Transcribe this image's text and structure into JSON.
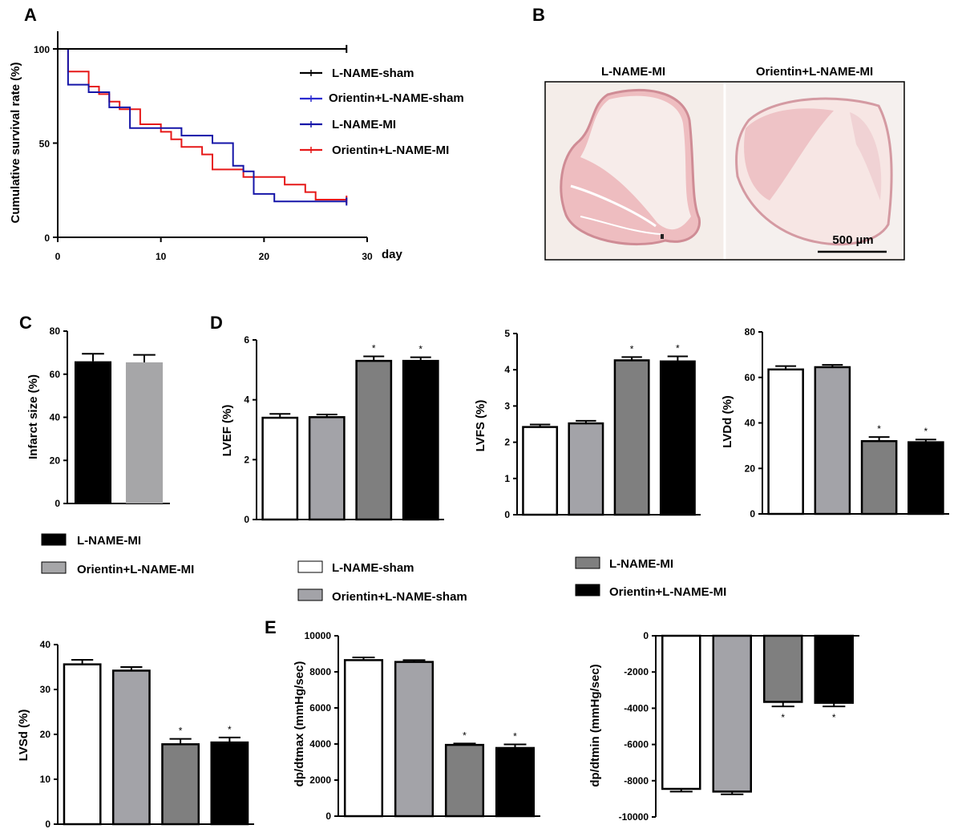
{
  "figure": {
    "panel_labels": {
      "A": "A",
      "B": "B",
      "C": "C",
      "D": "D",
      "E": "E"
    },
    "colors": {
      "sham": "#ffffff",
      "orientin_sham": "#a3a3a8",
      "mi": "#7f7f7f",
      "orientin_mi": "#000000",
      "c_orientin_mi": "#a6a6a8",
      "surv_sham": "#000000",
      "surv_orientin_sham": "#2a2ad0",
      "surv_mi": "#1515a8",
      "surv_orientin_mi": "#e61919"
    },
    "histology": {
      "left_title": "L-NAME-MI",
      "right_title": "Orientin+L-NAME-MI",
      "scale_bar": "500 µm"
    },
    "legend_c": [
      "L-NAME-MI",
      "Orientin+L-NAME-MI"
    ],
    "legend_d": [
      "L-NAME-sham",
      "Orientin+L-NAME-sham",
      "L-NAME-MI",
      "Orientin+L-NAME-MI"
    ]
  },
  "chart_data": [
    {
      "id": "A",
      "type": "line",
      "xlabel": "day",
      "ylabel": "Cumulative survival rate (%)",
      "xlim": [
        0,
        30
      ],
      "ylim": [
        0,
        100
      ],
      "xticks": [
        "0",
        "10",
        "20",
        "30"
      ],
      "yticks": [
        "0",
        "50",
        "100"
      ],
      "series": [
        {
          "name": "L-NAME-sham",
          "steps": [
            [
              0,
              100
            ],
            [
              28,
              100
            ]
          ]
        },
        {
          "name": "Orientin+L-NAME-sham",
          "steps": [
            [
              1,
              100
            ],
            [
              28,
              100
            ]
          ]
        },
        {
          "name": "L-NAME-MI",
          "steps": [
            [
              1,
              100
            ],
            [
              1,
              81
            ],
            [
              3,
              81
            ],
            [
              3,
              77
            ],
            [
              5,
              77
            ],
            [
              5,
              69
            ],
            [
              7,
              69
            ],
            [
              7,
              58
            ],
            [
              12,
              58
            ],
            [
              12,
              54
            ],
            [
              15,
              54
            ],
            [
              15,
              50
            ],
            [
              17,
              50
            ],
            [
              17,
              38
            ],
            [
              18,
              38
            ],
            [
              18,
              35
            ],
            [
              19,
              35
            ],
            [
              19,
              23
            ],
            [
              21,
              23
            ],
            [
              21,
              19
            ],
            [
              28,
              19
            ]
          ]
        },
        {
          "name": "Orientin+L-NAME-MI",
          "steps": [
            [
              1,
              100
            ],
            [
              1,
              88
            ],
            [
              3,
              88
            ],
            [
              3,
              80
            ],
            [
              4,
              80
            ],
            [
              4,
              76
            ],
            [
              5,
              76
            ],
            [
              5,
              72
            ],
            [
              6,
              72
            ],
            [
              6,
              68
            ],
            [
              8,
              68
            ],
            [
              8,
              60
            ],
            [
              10,
              60
            ],
            [
              10,
              56
            ],
            [
              11,
              56
            ],
            [
              11,
              52
            ],
            [
              12,
              52
            ],
            [
              12,
              48
            ],
            [
              14,
              48
            ],
            [
              14,
              44
            ],
            [
              15,
              44
            ],
            [
              15,
              36
            ],
            [
              18,
              36
            ],
            [
              18,
              32
            ],
            [
              22,
              32
            ],
            [
              22,
              28
            ],
            [
              24,
              28
            ],
            [
              24,
              24
            ],
            [
              25,
              24
            ],
            [
              25,
              20
            ],
            [
              28,
              20
            ],
            [
              28,
              21
            ]
          ]
        }
      ]
    },
    {
      "id": "C",
      "type": "bar",
      "ylabel": "Infarct size (%)",
      "ylim": [
        0,
        80
      ],
      "yticks": [
        0,
        20,
        40,
        60,
        80
      ],
      "categories": [
        "L-NAME-MI",
        "Orientin+L-NAME-MI"
      ],
      "values": [
        66,
        65.5
      ],
      "errors": [
        3.5,
        3.5
      ],
      "stars": [
        "",
        ""
      ]
    },
    {
      "id": "LVEF",
      "type": "bar",
      "ylabel": "LVEF (%)",
      "ylim": [
        0,
        6
      ],
      "yticks": [
        0,
        2,
        4,
        6
      ],
      "categories": [
        "L-NAME-sham",
        "Orientin+L-NAME-sham",
        "L-NAME-MI",
        "Orientin+L-NAME-MI"
      ],
      "values": [
        3.4,
        3.42,
        5.3,
        5.3
      ],
      "errors": [
        0.13,
        0.09,
        0.15,
        0.12
      ],
      "stars": [
        "",
        "",
        "*",
        "*"
      ]
    },
    {
      "id": "LVFS",
      "type": "bar",
      "ylabel": "LVFS (%)",
      "ylim": [
        0,
        5
      ],
      "yticks": [
        0,
        1,
        2,
        3,
        4,
        5
      ],
      "categories": [
        "L-NAME-sham",
        "Orientin+L-NAME-sham",
        "L-NAME-MI",
        "Orientin+L-NAME-MI"
      ],
      "values": [
        2.42,
        2.52,
        4.26,
        4.23
      ],
      "errors": [
        0.07,
        0.07,
        0.09,
        0.14
      ],
      "stars": [
        "",
        "",
        "*",
        "*"
      ]
    },
    {
      "id": "LVDd",
      "type": "bar",
      "ylabel": "LVDd (%)",
      "ylim": [
        0,
        80
      ],
      "yticks": [
        0,
        20,
        40,
        60,
        80
      ],
      "categories": [
        "L-NAME-sham",
        "Orientin+L-NAME-sham",
        "L-NAME-MI",
        "Orientin+L-NAME-MI"
      ],
      "values": [
        63.5,
        64.5,
        32,
        31.5
      ],
      "errors": [
        1.5,
        1,
        1.8,
        1.2
      ],
      "stars": [
        "",
        "",
        "*",
        "*"
      ]
    },
    {
      "id": "LVSd",
      "type": "bar",
      "ylabel": "LVSd (%)",
      "ylim": [
        0,
        40
      ],
      "yticks": [
        0,
        10,
        20,
        30,
        40
      ],
      "categories": [
        "L-NAME-sham",
        "Orientin+L-NAME-sham",
        "L-NAME-MI",
        "Orientin+L-NAME-MI"
      ],
      "values": [
        35.6,
        34.2,
        17.8,
        18.2
      ],
      "errors": [
        1,
        0.8,
        1.2,
        1.1
      ],
      "stars": [
        "",
        "",
        "*",
        "*"
      ]
    },
    {
      "id": "dpdtmax",
      "type": "bar",
      "ylabel": "dp/dtmax (mmHg/sec)",
      "ylim": [
        0,
        10000
      ],
      "yticks": [
        0,
        2000,
        4000,
        6000,
        8000,
        10000
      ],
      "categories": [
        "L-NAME-sham",
        "Orientin+L-NAME-sham",
        "L-NAME-MI",
        "Orientin+L-NAME-MI"
      ],
      "values": [
        8650,
        8550,
        3950,
        3780
      ],
      "errors": [
        150,
        100,
        80,
        200
      ],
      "stars": [
        "",
        "",
        "*",
        "*"
      ]
    },
    {
      "id": "dpdtmin",
      "type": "bar",
      "ylabel": "dp/dtmin (mmHg/sec)",
      "ylim": [
        -10000,
        0
      ],
      "yticks": [
        -10000,
        -8000,
        -6000,
        -4000,
        -2000,
        0
      ],
      "categories": [
        "L-NAME-sham",
        "Orientin+L-NAME-sham",
        "L-NAME-MI",
        "Orientin+L-NAME-MI"
      ],
      "values": [
        -8450,
        -8600,
        -3650,
        -3700
      ],
      "errors": [
        150,
        150,
        250,
        200
      ],
      "stars": [
        "",
        "",
        "*",
        "*"
      ]
    }
  ]
}
